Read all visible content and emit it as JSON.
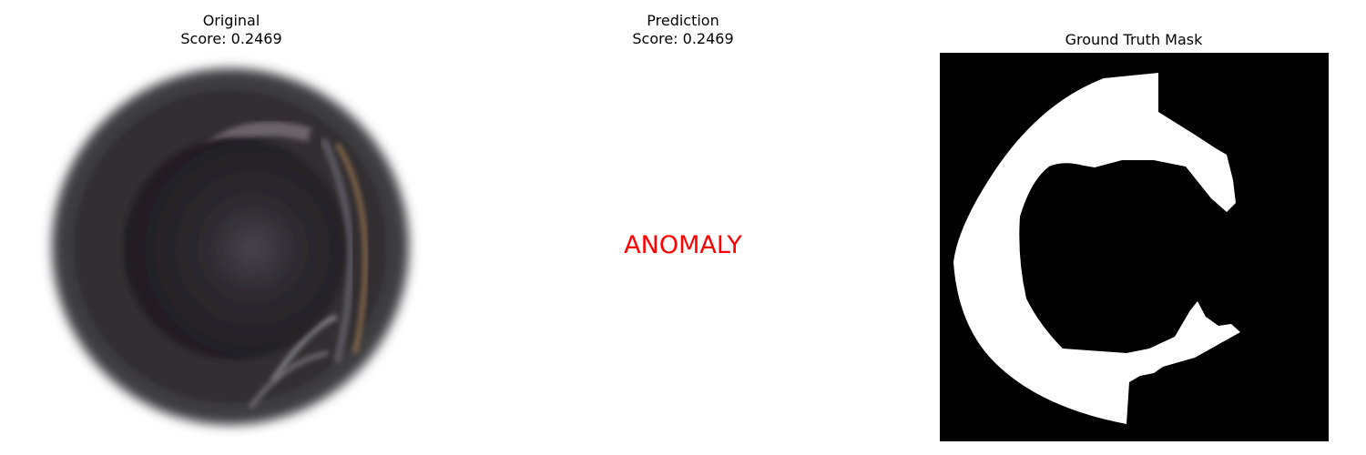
{
  "panels": [
    {
      "title": "Original",
      "score_line": "Score: 0.2469"
    },
    {
      "title": "Prediction",
      "score_line": "Score: 0.2469",
      "verdict": "ANOMALY",
      "verdict_color": "#ff0000"
    },
    {
      "title": "Ground Truth Mask"
    }
  ]
}
